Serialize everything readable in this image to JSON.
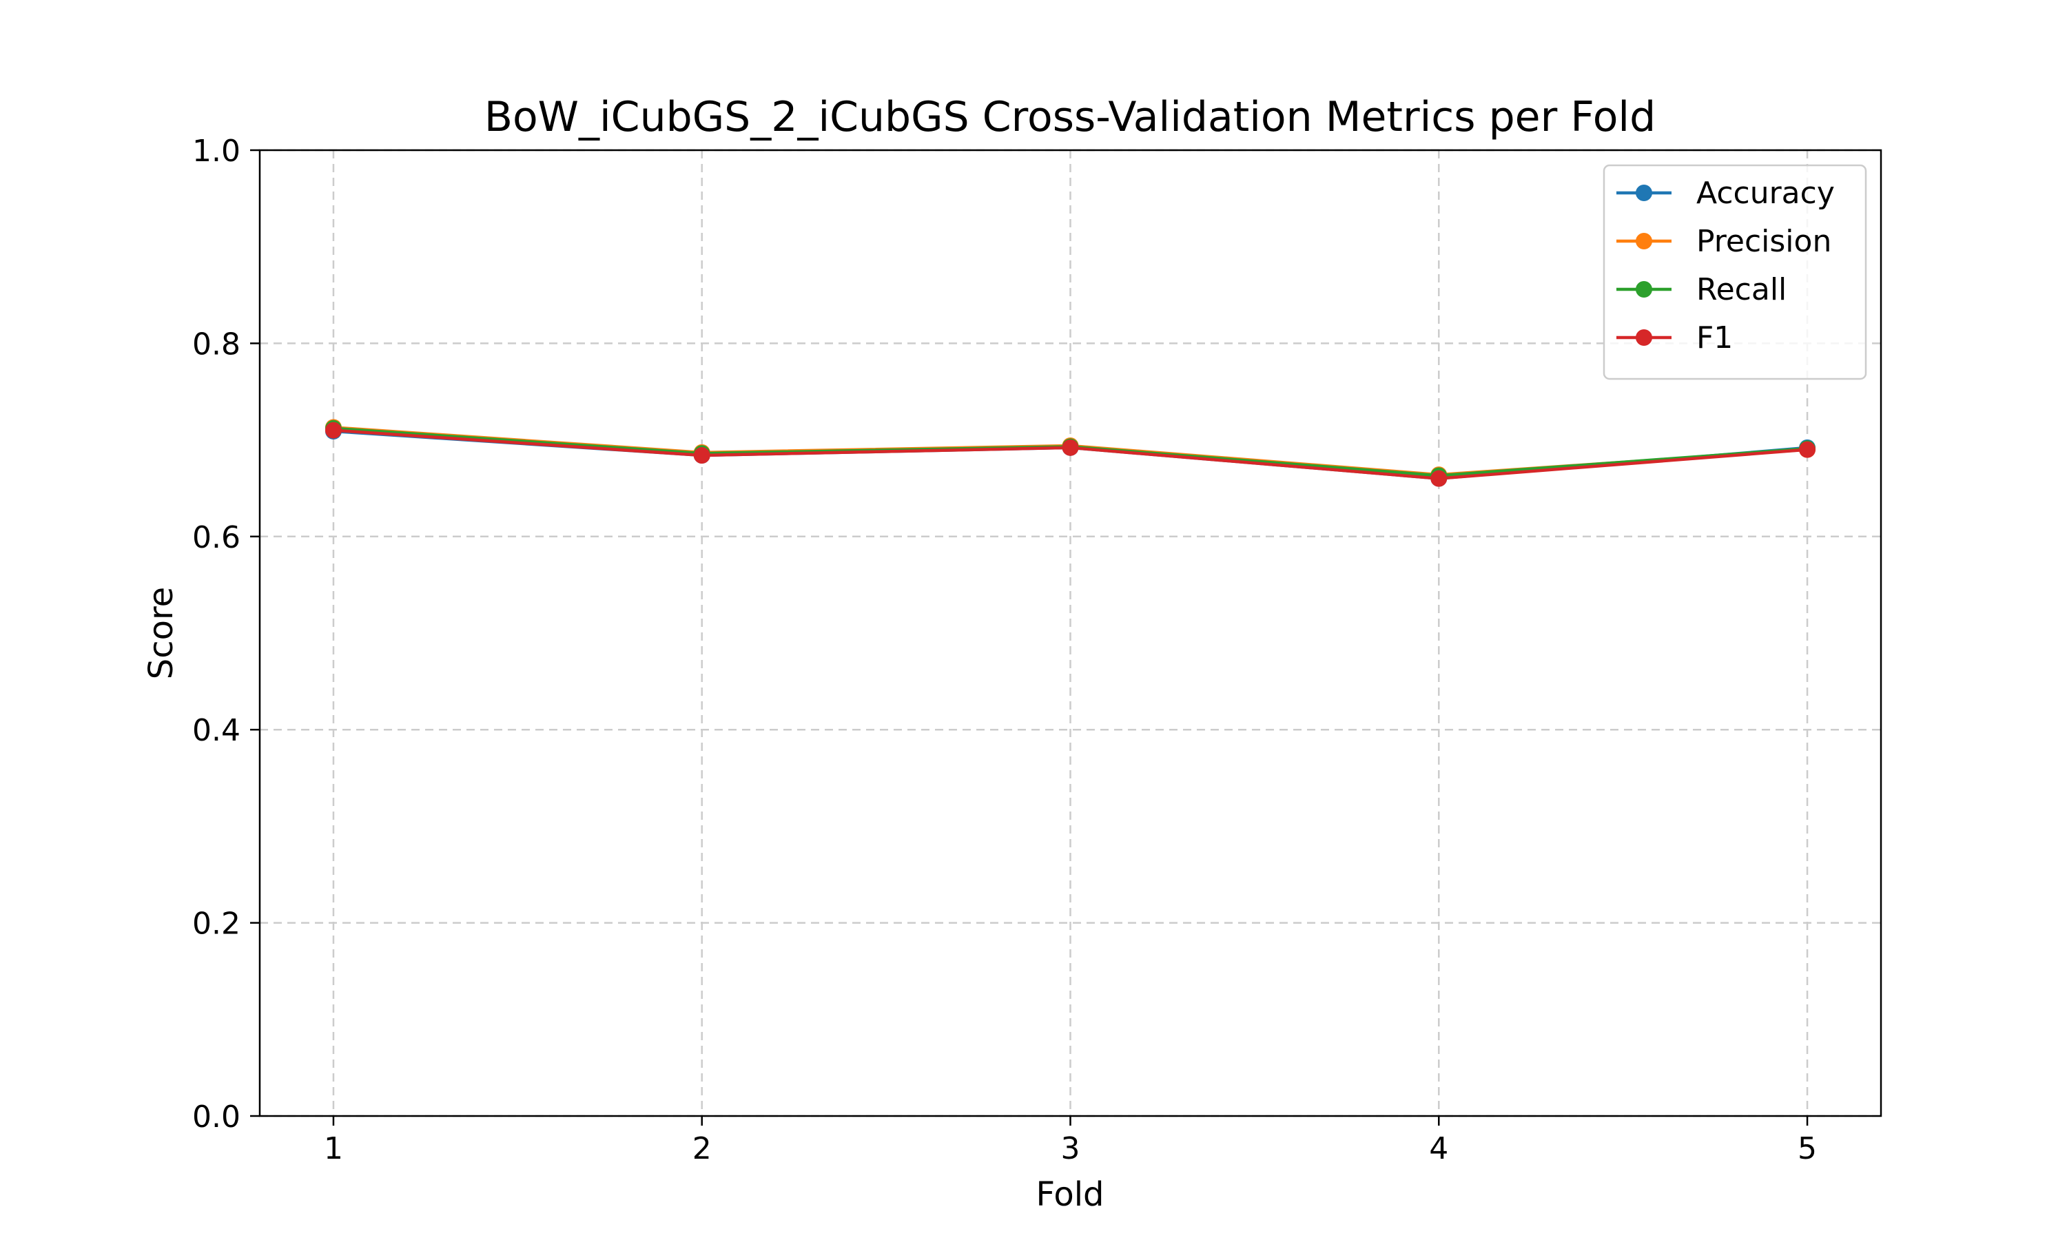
{
  "chart_data": {
    "type": "line",
    "title": "BoW_iCubGS_2_iCubGS Cross-Validation Metrics per Fold",
    "xlabel": "Fold",
    "ylabel": "Score",
    "x": [
      1,
      2,
      3,
      4,
      5
    ],
    "x_ticks": [
      "1",
      "2",
      "3",
      "4",
      "5"
    ],
    "xlim": [
      0.8,
      5.2
    ],
    "ylim": [
      0.0,
      1.0
    ],
    "y_ticks": [
      "0.0",
      "0.2",
      "0.4",
      "0.6",
      "0.8",
      "1.0"
    ],
    "grid": true,
    "legend_position": "top-right",
    "series": [
      {
        "name": "Accuracy",
        "color": "#1f77b4",
        "values": [
          0.709,
          0.684,
          0.692,
          0.66,
          0.692
        ]
      },
      {
        "name": "Precision",
        "color": "#ff7f0e",
        "values": [
          0.713,
          0.687,
          0.694,
          0.664,
          0.69
        ]
      },
      {
        "name": "Recall",
        "color": "#2ca02c",
        "values": [
          0.712,
          0.686,
          0.693,
          0.663,
          0.691
        ]
      },
      {
        "name": "F1",
        "color": "#d62728",
        "values": [
          0.71,
          0.684,
          0.692,
          0.66,
          0.69
        ]
      }
    ]
  }
}
